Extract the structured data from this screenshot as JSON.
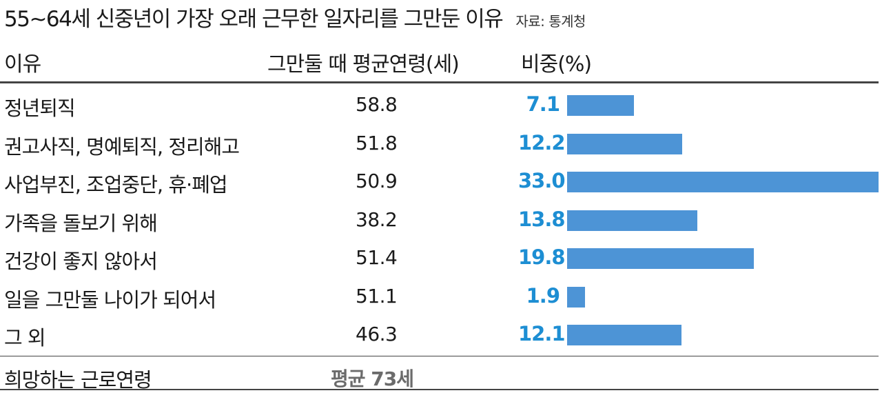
{
  "title": "55~64세 신중년이 가장 오래 근무한 일자리를 그만둔 이유",
  "source": "자료: 통계청",
  "headers": {
    "reason": "이유",
    "age": "그만둘 때 평균연령(세)",
    "share": "비중(%)"
  },
  "chart_data": {
    "type": "bar",
    "orientation": "horizontal",
    "title": "55~64세 신중년이 가장 오래 근무한 일자리를 그만둔 이유",
    "categories": [
      "정년퇴직",
      "권고사직, 명예퇴직, 정리해고",
      "사업부진, 조업중단, 휴·폐업",
      "가족을 돌보기 위해",
      "건강이 좋지 않아서",
      "일을 그만둘 나이가 되어서",
      "그 외"
    ],
    "average_age": [
      "58.8",
      "51.8",
      "50.9",
      "38.2",
      "51.4",
      "51.1",
      "46.3"
    ],
    "series": [
      {
        "name": "비중(%)",
        "values": [
          7.1,
          12.2,
          33.0,
          13.8,
          19.8,
          1.9,
          12.1
        ]
      }
    ],
    "value_labels": [
      "7.1",
      "12.2",
      "33.0",
      "13.8",
      "19.8",
      "1.9",
      "12.1"
    ],
    "xlim": [
      0,
      33.0
    ],
    "bar_color": "#4d94d6",
    "label_color": "#1d8ed3"
  },
  "footer": {
    "label": "희망하는 근로연령",
    "value": "평균 73세"
  }
}
